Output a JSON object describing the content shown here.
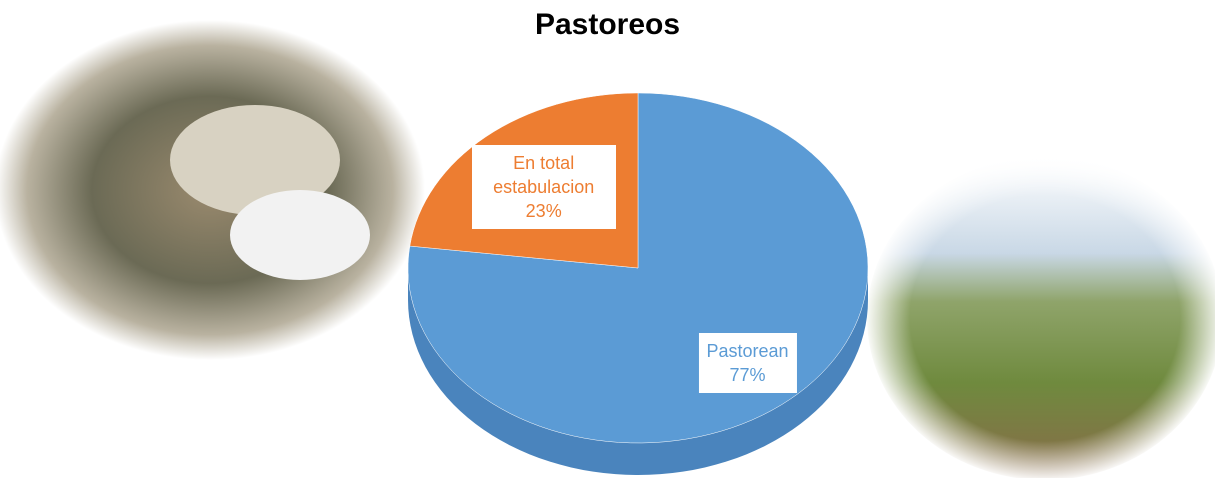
{
  "chart_data": {
    "type": "pie",
    "title": "Pastoreos",
    "categories": [
      "Pastorean",
      "En total estabulacion"
    ],
    "values": [
      77,
      23
    ],
    "value_labels": [
      "77%",
      "23%"
    ],
    "colors": [
      "#5b9bd5",
      "#ed7d31"
    ]
  }
}
